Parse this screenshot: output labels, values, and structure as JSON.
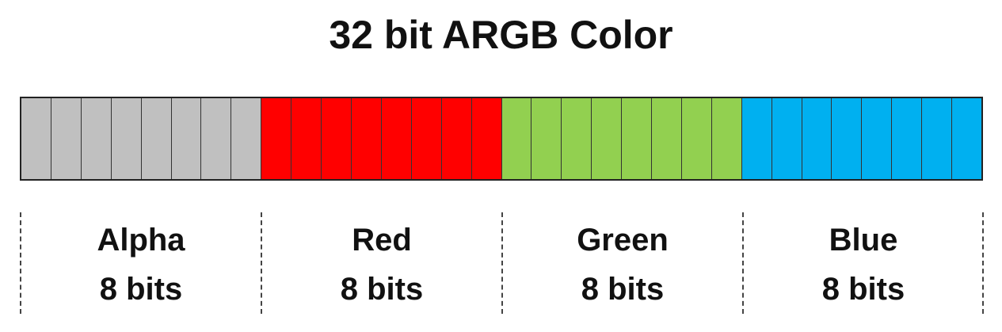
{
  "title": "32 bit ARGB Color",
  "channels": [
    {
      "name": "Alpha",
      "bits_label": "8 bits",
      "bits": 8,
      "color": "#C0C0C0"
    },
    {
      "name": "Red",
      "bits_label": "8 bits",
      "bits": 8,
      "color": "#FF0000"
    },
    {
      "name": "Green",
      "bits_label": "8 bits",
      "bits": 8,
      "color": "#92D050"
    },
    {
      "name": "Blue",
      "bits_label": "8 bits",
      "bits": 8,
      "color": "#00B0F0"
    }
  ]
}
